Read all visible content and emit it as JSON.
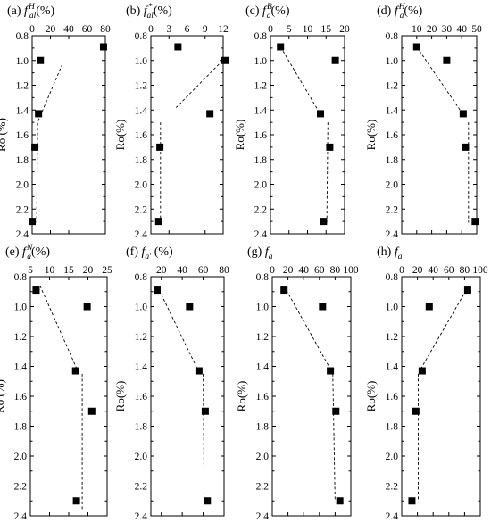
{
  "chart_data": [
    {
      "type": "scatter",
      "title_prefix": "(a)",
      "title_symbol": "f",
      "title_sub": "al",
      "title_sup": "H",
      "title_suffix": "(%)",
      "ylabel": "Ro (%)",
      "xlim": [
        0,
        80
      ],
      "x_ticks": [
        0,
        20,
        40,
        60,
        80
      ],
      "ylim": [
        2.4,
        0.8
      ],
      "y_ticks": [
        0.8,
        1.0,
        1.2,
        1.4,
        1.6,
        1.8,
        2.0,
        2.2,
        2.4
      ],
      "points": [
        [
          78,
          0.89
        ],
        [
          9,
          1.0
        ],
        [
          7,
          1.43
        ],
        [
          3,
          1.7
        ],
        [
          0,
          2.3
        ]
      ],
      "trend": [
        [
          33,
          1.03
        ],
        [
          6,
          1.5
        ],
        [
          5,
          2.31
        ]
      ]
    },
    {
      "type": "scatter",
      "title_prefix": "(b)",
      "title_symbol": "f",
      "title_sub": "al",
      "title_sup": "*",
      "title_suffix": "(%)",
      "ylabel": "Ro(%)",
      "xlim": [
        0,
        12
      ],
      "x_ticks": [
        0,
        3,
        6,
        9,
        12
      ],
      "ylim": [
        2.4,
        0.8
      ],
      "y_ticks": [
        0.8,
        1.0,
        1.2,
        1.4,
        1.6,
        1.8,
        2.0,
        2.2,
        2.4
      ],
      "points": [
        [
          4.5,
          0.89
        ],
        [
          12.3,
          1.0
        ],
        [
          9.8,
          1.43
        ],
        [
          1.5,
          1.7
        ],
        [
          1.3,
          2.3
        ]
      ],
      "trend": [
        [
          11.3,
          1.03
        ],
        [
          4.2,
          1.38
        ],
        null,
        [
          1.6,
          1.5
        ],
        [
          1.6,
          2.3
        ]
      ]
    },
    {
      "type": "scatter",
      "title_prefix": "(c)",
      "title_symbol": "f",
      "title_sub": "a",
      "title_sup": "B",
      "title_suffix": "(%)",
      "ylabel": "Ro(%)",
      "xlim": [
        0,
        20
      ],
      "x_ticks": [
        0,
        5,
        10,
        15,
        20
      ],
      "ylim": [
        2.4,
        0.8
      ],
      "y_ticks": [
        0.8,
        1.0,
        1.2,
        1.4,
        1.6,
        1.8,
        2.0,
        2.2,
        2.4
      ],
      "points": [
        [
          2.7,
          0.89
        ],
        [
          17.5,
          1.0
        ],
        [
          13.5,
          1.43
        ],
        [
          16.0,
          1.7
        ],
        [
          14.3,
          2.3
        ]
      ],
      "trend": [
        [
          2.7,
          0.89
        ],
        [
          12.8,
          1.4
        ],
        null,
        [
          15.5,
          1.5
        ],
        [
          15.2,
          2.31
        ]
      ]
    },
    {
      "type": "scatter",
      "title_prefix": "(d)",
      "title_symbol": "f",
      "title_sub": "a",
      "title_sup": "H",
      "title_suffix": "(%)",
      "ylabel": "Ro(%)",
      "xlim": [
        0,
        50
      ],
      "x_ticks": [
        10,
        20,
        30,
        40,
        50
      ],
      "ylim": [
        2.4,
        0.8
      ],
      "y_ticks": [
        0.8,
        1.0,
        1.2,
        1.4,
        1.6,
        1.8,
        2.0,
        2.2,
        2.4
      ],
      "points": [
        [
          10,
          0.89
        ],
        [
          30,
          1.0
        ],
        [
          41,
          1.43
        ],
        [
          42.5,
          1.7
        ],
        [
          49,
          2.3
        ]
      ],
      "trend": [
        [
          10,
          0.89
        ],
        [
          40,
          1.42
        ],
        null,
        [
          44.5,
          1.5
        ],
        [
          44.5,
          2.31
        ]
      ]
    },
    {
      "type": "scatter",
      "title_prefix": "(e)",
      "title_symbol": "f",
      "title_sub": "a",
      "title_sup": "N",
      "title_suffix": "(%)",
      "ylabel": "Ro (%)",
      "xlim": [
        5,
        25
      ],
      "x_ticks": [
        5,
        10,
        15,
        20,
        25
      ],
      "ylim": [
        2.4,
        0.8
      ],
      "y_ticks": [
        0.8,
        1.0,
        1.2,
        1.4,
        1.6,
        1.8,
        2.0,
        2.2,
        2.4
      ],
      "points": [
        [
          6.5,
          0.89
        ],
        [
          19.8,
          1.0
        ],
        [
          16.8,
          1.43
        ],
        [
          21.0,
          1.7
        ],
        [
          17.0,
          2.3
        ]
      ],
      "trend": [
        [
          7.5,
          0.86
        ],
        [
          17.0,
          1.41
        ],
        null,
        [
          18.5,
          1.45
        ],
        [
          18.5,
          2.37
        ]
      ]
    },
    {
      "type": "scatter",
      "title_prefix": "(f)",
      "title_symbol": "f",
      "title_sub": "a'",
      "title_sup": "",
      "title_suffix": "(%)",
      "ylabel": "Ro(%)",
      "xlim": [
        10,
        80
      ],
      "x_ticks": [
        20,
        40,
        60,
        80
      ],
      "ylim": [
        2.4,
        0.8
      ],
      "y_ticks": [
        0.8,
        1.0,
        1.2,
        1.4,
        1.6,
        1.8,
        2.0,
        2.2,
        2.4
      ],
      "points": [
        [
          16,
          0.89
        ],
        [
          47,
          1.0
        ],
        [
          56,
          1.43
        ],
        [
          62,
          1.7
        ],
        [
          64,
          2.3
        ]
      ],
      "trend": [
        [
          18,
          0.89
        ],
        [
          54,
          1.41
        ],
        null,
        [
          60,
          1.45
        ],
        [
          61,
          2.31
        ]
      ]
    },
    {
      "type": "scatter",
      "title_prefix": "(g)",
      "title_symbol": "f",
      "title_sub": "a",
      "title_sup": "",
      "title_suffix": "",
      "ylabel": "Ro(%)",
      "xlim": [
        0,
        100
      ],
      "x_ticks": [
        0,
        20,
        40,
        60,
        80,
        100
      ],
      "ylim": [
        2.4,
        0.8
      ],
      "y_ticks": [
        0.8,
        1.0,
        1.2,
        1.4,
        1.6,
        1.8,
        2.0,
        2.2,
        2.4
      ],
      "points": [
        [
          15,
          0.89
        ],
        [
          64,
          1.0
        ],
        [
          74,
          1.43
        ],
        [
          81,
          1.7
        ],
        [
          86,
          2.3
        ]
      ],
      "trend": [
        [
          18,
          0.89
        ],
        [
          72,
          1.4
        ],
        null,
        [
          77,
          1.45
        ],
        [
          80,
          2.31
        ]
      ]
    },
    {
      "type": "scatter",
      "title_prefix": "(h)",
      "title_symbol": "f",
      "title_sub": "a",
      "title_sup": "",
      "title_suffix": "",
      "ylabel": "Ro(%)",
      "xlim": [
        0,
        100
      ],
      "x_ticks": [
        0,
        20,
        40,
        60,
        80,
        100
      ],
      "ylim": [
        2.4,
        0.8
      ],
      "y_ticks": [
        0.8,
        1.0,
        1.2,
        1.4,
        1.6,
        1.8,
        2.0,
        2.2,
        2.4
      ],
      "points": [
        [
          84,
          0.89
        ],
        [
          35,
          1.0
        ],
        [
          26,
          1.43
        ],
        [
          18,
          1.7
        ],
        [
          13,
          2.3
        ]
      ],
      "trend": [
        [
          82,
          0.89
        ],
        [
          25,
          1.41
        ],
        null,
        [
          21,
          1.45
        ],
        [
          21,
          2.31
        ]
      ]
    }
  ]
}
